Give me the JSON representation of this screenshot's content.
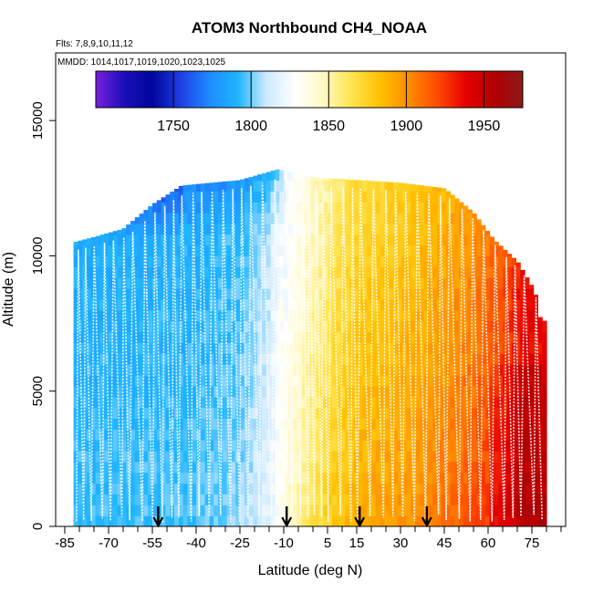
{
  "chart_data": {
    "type": "heatmap",
    "title": "ATOM3 Northbound CH4_NOAA",
    "flights_label": "Flts: 7,8,9,10,11,12",
    "dates_label": "MMDD: 1014,1017,1019,1020,1023,1025",
    "xlabel": "Latitude (deg N)",
    "ylabel": "Altitude (m)",
    "xlim": [
      -85,
      85
    ],
    "ylim": [
      0,
      17500
    ],
    "x_ticks": [
      -85,
      -70,
      -55,
      -40,
      -25,
      -10,
      5,
      15,
      30,
      45,
      60,
      75
    ],
    "y_ticks": [
      0,
      5000,
      10000,
      15000
    ],
    "colorbar": {
      "range": [
        1700,
        1975
      ],
      "ticks": [
        1750,
        1800,
        1850,
        1900,
        1950
      ],
      "colors": [
        "#7a1fe0",
        "#1a0fb8",
        "#00069b",
        "#1f3fe6",
        "#1e8cff",
        "#1fb6ff",
        "#cfeaff",
        "#ffffff",
        "#fff9c4",
        "#ffe44d",
        "#ffc000",
        "#ff8c00",
        "#ff4a00",
        "#e60000",
        "#b00000",
        "#8c1a1a"
      ]
    },
    "profile_top_altitude_m": [
      {
        "lat": -82,
        "alt": 10500
      },
      {
        "lat": -75,
        "alt": 10700
      },
      {
        "lat": -65,
        "alt": 11000
      },
      {
        "lat": -55,
        "alt": 11900
      },
      {
        "lat": -45,
        "alt": 12600
      },
      {
        "lat": -35,
        "alt": 12700
      },
      {
        "lat": -25,
        "alt": 12800
      },
      {
        "lat": -12,
        "alt": 13200
      },
      {
        "lat": 0,
        "alt": 12900
      },
      {
        "lat": 15,
        "alt": 12800
      },
      {
        "lat": 30,
        "alt": 12700
      },
      {
        "lat": 45,
        "alt": 12500
      },
      {
        "lat": 55,
        "alt": 11600
      },
      {
        "lat": 62,
        "alt": 10600
      },
      {
        "lat": 70,
        "alt": 9800
      },
      {
        "lat": 76,
        "alt": 8700
      },
      {
        "lat": 78,
        "alt": 7600
      }
    ],
    "latitude_ch4_ppb": [
      {
        "lat": -80,
        "ch4": 1795
      },
      {
        "lat": -60,
        "ch4": 1796
      },
      {
        "lat": -40,
        "ch4": 1797
      },
      {
        "lat": -25,
        "ch4": 1803
      },
      {
        "lat": -15,
        "ch4": 1818
      },
      {
        "lat": -8,
        "ch4": 1845
      },
      {
        "lat": 0,
        "ch4": 1866
      },
      {
        "lat": 8,
        "ch4": 1880
      },
      {
        "lat": 15,
        "ch4": 1890
      },
      {
        "lat": 25,
        "ch4": 1895
      },
      {
        "lat": 35,
        "ch4": 1900
      },
      {
        "lat": 45,
        "ch4": 1908
      },
      {
        "lat": 55,
        "ch4": 1918
      },
      {
        "lat": 65,
        "ch4": 1932
      },
      {
        "lat": 72,
        "ch4": 1950
      },
      {
        "lat": 78,
        "ch4": 1948
      }
    ],
    "markers_lat": [
      -53,
      -9,
      16,
      39
    ]
  }
}
